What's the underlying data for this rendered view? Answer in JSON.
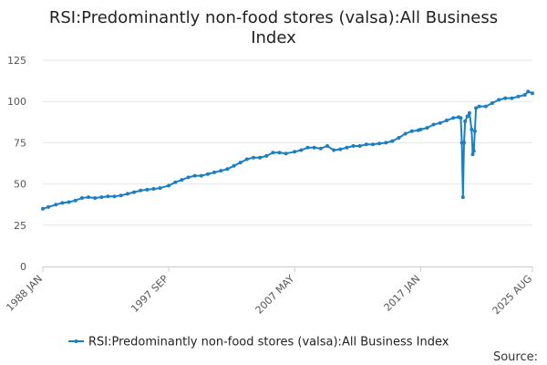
{
  "chart_data": {
    "type": "line",
    "title_lines": [
      "RSI:Predominantly non-food stores (valsa):All Business",
      "Index"
    ],
    "x_tick_labels": [
      "1988 JAN",
      "1997 SEP",
      "2007 MAY",
      "2017 JAN",
      "2025 AUG"
    ],
    "x_tick_positions": [
      "1988-01",
      "1997-09",
      "2007-05",
      "2017-01",
      "2025-08"
    ],
    "y_ticks": [
      0,
      25,
      50,
      75,
      100,
      125
    ],
    "ylim": [
      0,
      125
    ],
    "xlim": [
      "1988-01",
      "2025-08"
    ],
    "grid": true,
    "legend_position": "bottom",
    "source_label": "Source:",
    "series": [
      {
        "name": "RSI:Predominantly non-food stores (valsa):All Business Index",
        "color": "#1b7fc3",
        "points": [
          [
            "1988-01",
            35
          ],
          [
            "1988-06",
            36
          ],
          [
            "1989-01",
            37.5
          ],
          [
            "1989-07",
            38.5
          ],
          [
            "1990-01",
            39
          ],
          [
            "1990-07",
            40
          ],
          [
            "1991-01",
            41.5
          ],
          [
            "1991-07",
            42
          ],
          [
            "1992-01",
            41.5
          ],
          [
            "1992-07",
            42
          ],
          [
            "1993-01",
            42.5
          ],
          [
            "1993-07",
            42.5
          ],
          [
            "1994-01",
            43
          ],
          [
            "1994-07",
            44
          ],
          [
            "1995-01",
            45
          ],
          [
            "1995-07",
            46
          ],
          [
            "1996-01",
            46.5
          ],
          [
            "1996-07",
            47
          ],
          [
            "1997-01",
            47.5
          ],
          [
            "1997-09",
            49
          ],
          [
            "1998-03",
            51
          ],
          [
            "1998-09",
            52.5
          ],
          [
            "1999-03",
            54
          ],
          [
            "1999-09",
            55
          ],
          [
            "2000-03",
            55
          ],
          [
            "2000-09",
            56
          ],
          [
            "2001-03",
            57
          ],
          [
            "2001-09",
            58
          ],
          [
            "2002-03",
            59
          ],
          [
            "2002-09",
            61
          ],
          [
            "2003-03",
            63
          ],
          [
            "2003-09",
            65
          ],
          [
            "2004-03",
            66
          ],
          [
            "2004-09",
            66
          ],
          [
            "2005-03",
            67
          ],
          [
            "2005-09",
            69
          ],
          [
            "2006-03",
            69
          ],
          [
            "2006-09",
            68.5
          ],
          [
            "2007-05",
            69.5
          ],
          [
            "2007-11",
            70.5
          ],
          [
            "2008-05",
            72
          ],
          [
            "2008-11",
            72
          ],
          [
            "2009-05",
            71.5
          ],
          [
            "2009-11",
            73
          ],
          [
            "2010-05",
            70.5
          ],
          [
            "2010-11",
            71
          ],
          [
            "2011-05",
            72
          ],
          [
            "2011-11",
            73
          ],
          [
            "2012-05",
            73
          ],
          [
            "2012-11",
            74
          ],
          [
            "2013-05",
            74
          ],
          [
            "2013-11",
            74.5
          ],
          [
            "2014-05",
            75
          ],
          [
            "2014-11",
            76
          ],
          [
            "2015-05",
            78
          ],
          [
            "2015-11",
            80.5
          ],
          [
            "2016-05",
            82
          ],
          [
            "2016-11",
            82.5
          ],
          [
            "2017-01",
            83
          ],
          [
            "2017-07",
            84
          ],
          [
            "2018-01",
            86
          ],
          [
            "2018-07",
            87
          ],
          [
            "2019-01",
            88.5
          ],
          [
            "2019-07",
            90
          ],
          [
            "2019-12",
            90.5
          ],
          [
            "2020-02",
            90
          ],
          [
            "2020-03",
            75
          ],
          [
            "2020-04",
            42
          ],
          [
            "2020-05",
            75
          ],
          [
            "2020-06",
            88
          ],
          [
            "2020-08",
            91
          ],
          [
            "2020-10",
            93
          ],
          [
            "2020-12",
            83
          ],
          [
            "2021-01",
            68
          ],
          [
            "2021-02",
            70
          ],
          [
            "2021-03",
            82
          ],
          [
            "2021-04",
            96
          ],
          [
            "2021-07",
            97
          ],
          [
            "2022-01",
            97
          ],
          [
            "2022-07",
            99
          ],
          [
            "2023-01",
            101
          ],
          [
            "2023-07",
            102
          ],
          [
            "2024-01",
            102
          ],
          [
            "2024-07",
            103
          ],
          [
            "2025-01",
            104
          ],
          [
            "2025-04",
            106
          ],
          [
            "2025-08",
            105
          ]
        ]
      }
    ]
  }
}
